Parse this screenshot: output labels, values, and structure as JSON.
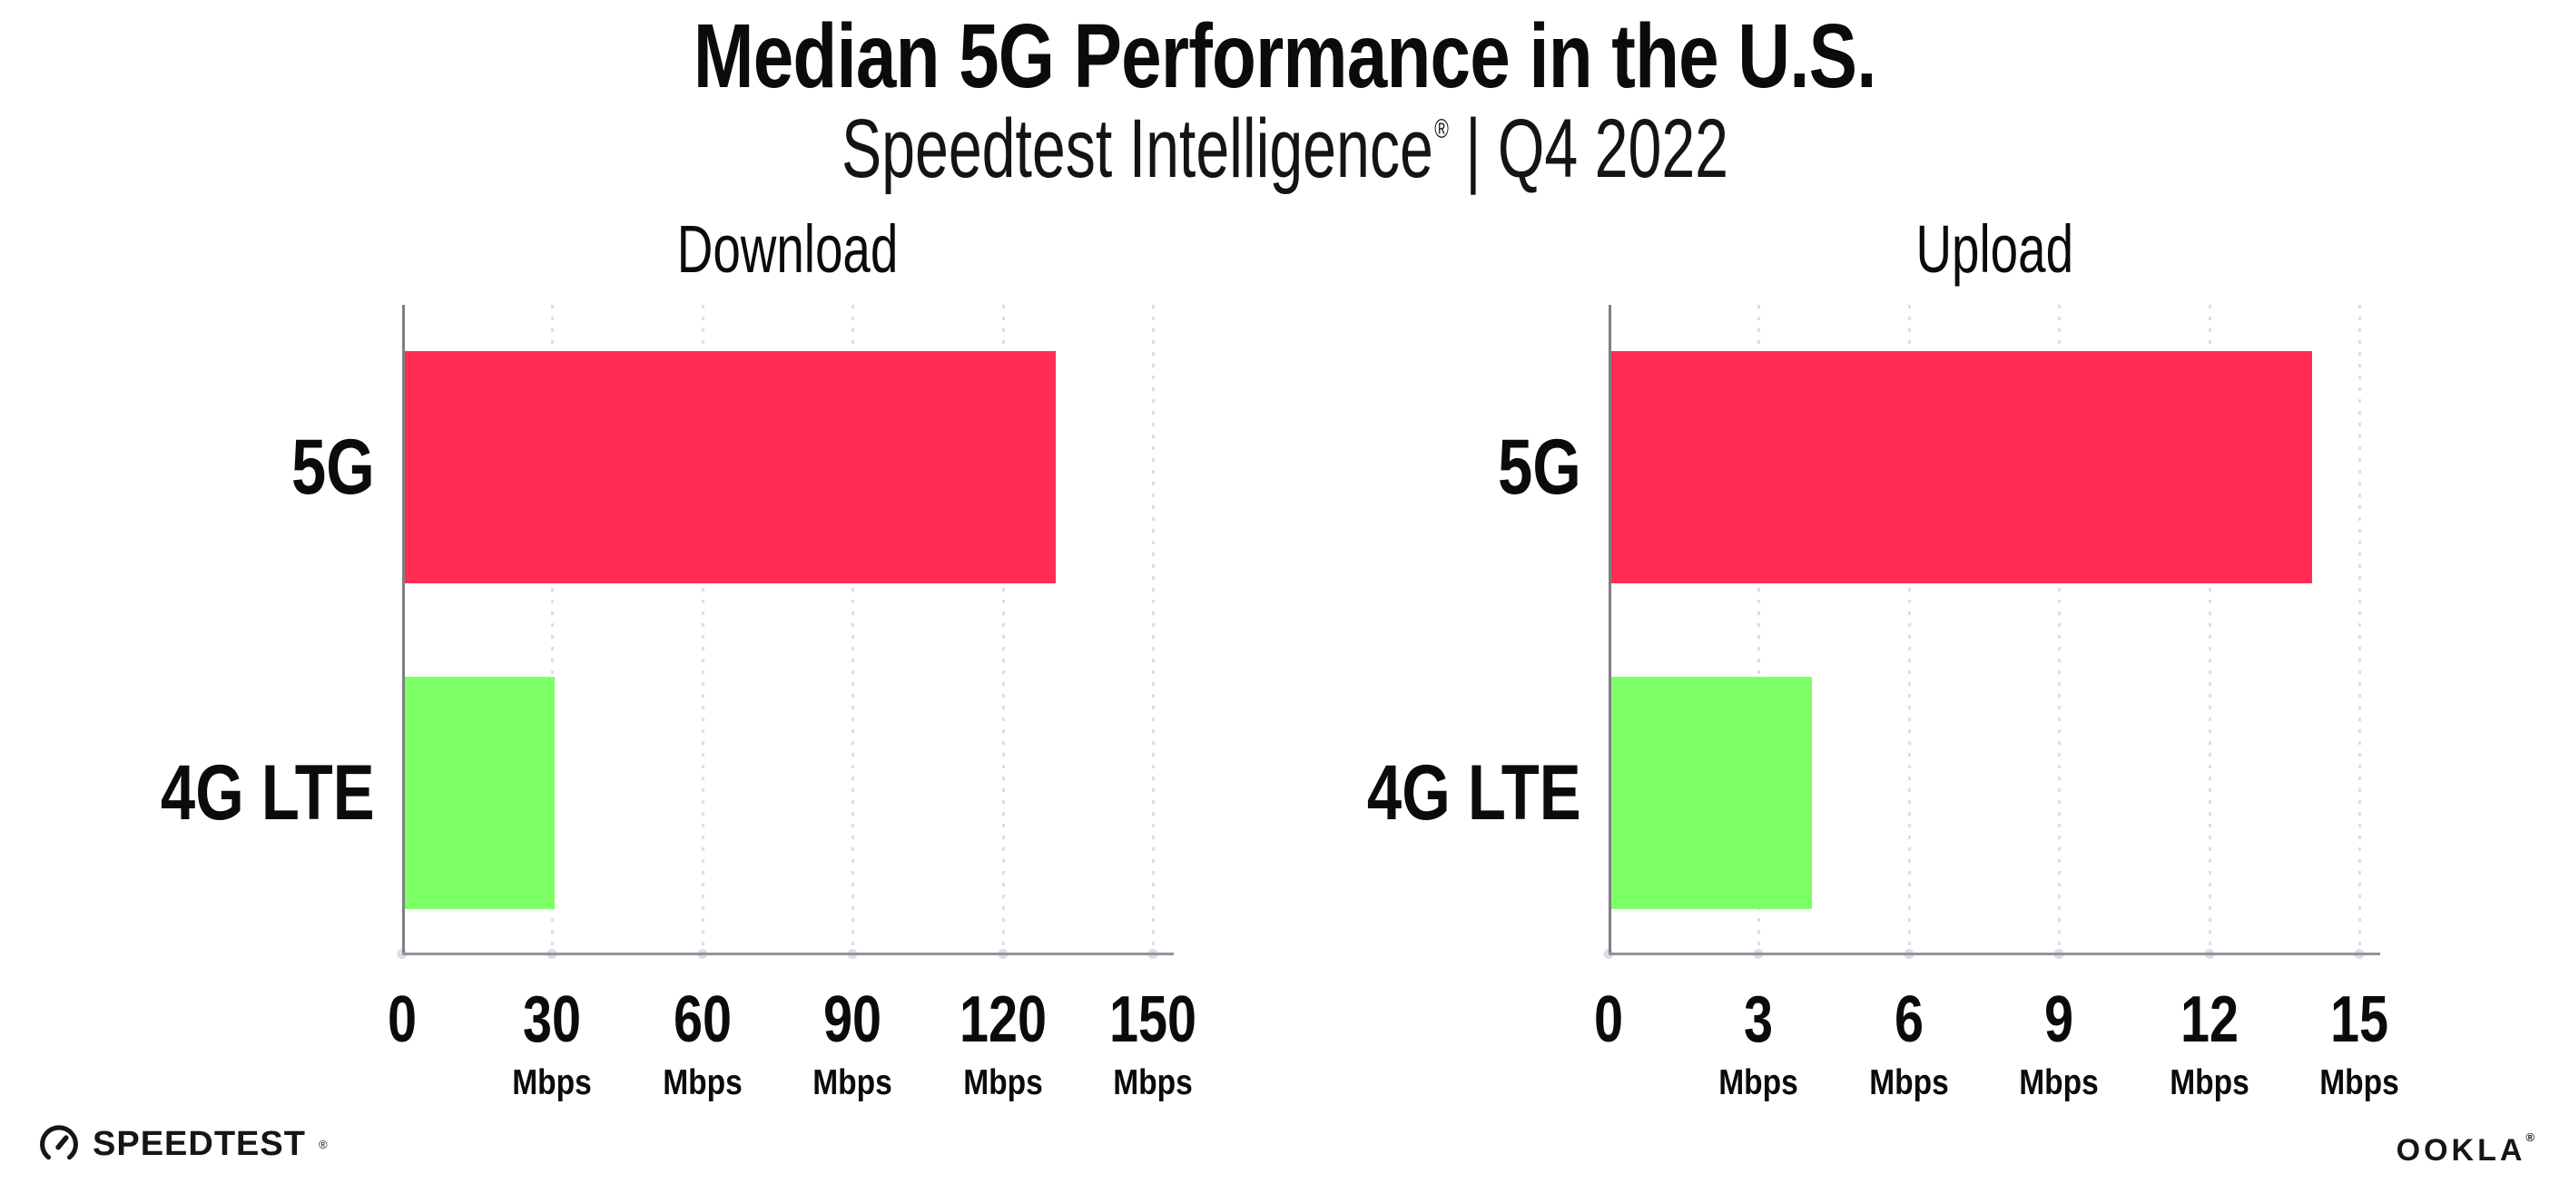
{
  "header": {
    "title": "Median 5G Performance in the U.S.",
    "subtitle_brand": "Speedtest Intelligence",
    "subtitle_regmark": "®",
    "subtitle_rest": " | Q4 2022"
  },
  "colors": {
    "bar_5g": "#FF2D55",
    "bar_4g_lte": "#7DFF66",
    "x_axis": "#94949A",
    "y_axis": "#7E7E84",
    "gridline": "#DCDEE8",
    "text": "#0B0B0B"
  },
  "chart_data": [
    {
      "type": "bar",
      "orientation": "horizontal",
      "title": "Download",
      "categories": [
        "5G",
        "4G LTE"
      ],
      "values": [
        130,
        30
      ],
      "unit": "Mbps",
      "xlim": [
        0,
        150
      ],
      "xticks": [
        0,
        30,
        60,
        90,
        120,
        150
      ],
      "bar_colors": [
        "#FF2D55",
        "#7DFF66"
      ],
      "grid": "dotted-vertical",
      "legend": "none"
    },
    {
      "type": "bar",
      "orientation": "horizontal",
      "title": "Upload",
      "categories": [
        "5G",
        "4G LTE"
      ],
      "values": [
        14,
        4
      ],
      "unit": "Mbps",
      "xlim": [
        0,
        15
      ],
      "xticks": [
        0,
        3,
        6,
        9,
        12,
        15
      ],
      "bar_colors": [
        "#FF2D55",
        "#7DFF66"
      ],
      "grid": "dotted-vertical",
      "legend": "none"
    }
  ],
  "footer": {
    "speedtest_label": "SPEEDTEST",
    "speedtest_regmark": "®",
    "ookla_label": "OOKLA",
    "ookla_regmark": "®"
  }
}
